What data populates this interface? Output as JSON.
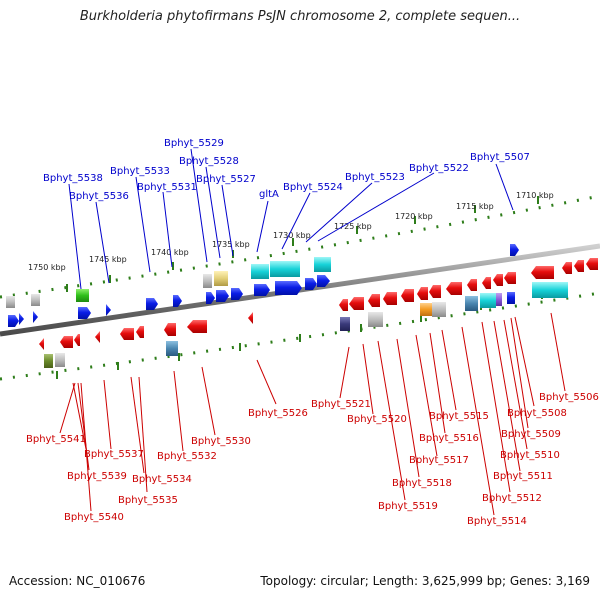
{
  "title": "Burkholderia phytofirmans PsJN chromosome 2, complete sequen...",
  "accession_line": "Accession: NC_010676",
  "summary_line": "Topology: circular; Length: 3,625,999 bp; Genes: 3,169",
  "colors": {
    "top_label": "#0000cc",
    "bottom_label": "#cc0000",
    "tick": "#2e7d1a",
    "backbone": "#8c8c8c",
    "forward_gene": "#0a1de6",
    "reverse_gene": "#e60d0d"
  },
  "scale": [
    "1750 kbp",
    "1745 kbp",
    "1740 kbp",
    "1735 kbp",
    "1730 kbp",
    "1725 kbp",
    "1720 kbp",
    "1715 kbp",
    "1710 kbp"
  ],
  "top_labels": [
    "Bphyt_5538",
    "Bphyt_5536",
    "Bphyt_5533",
    "Bphyt_5531",
    "Bphyt_5529",
    "Bphyt_5528",
    "Bphyt_5527",
    "gltA",
    "Bphyt_5524",
    "Bphyt_5523",
    "Bphyt_5522",
    "Bphyt_5507"
  ],
  "bottom_labels": [
    "Bphyt_5541",
    "Bphyt_5537",
    "Bphyt_5539",
    "Bphyt_5540",
    "Bphyt_5534",
    "Bphyt_5535",
    "Bphyt_5532",
    "Bphyt_5530",
    "Bphyt_5526",
    "Bphyt_5521",
    "Bphyt_5520",
    "Bphyt_5519",
    "Bphyt_5518",
    "Bphyt_5517",
    "Bphyt_5516",
    "Bphyt_5515",
    "Bphyt_5514",
    "Bphyt_5512",
    "Bphyt_5511",
    "Bphyt_5510",
    "Bphyt_5509",
    "Bphyt_5508",
    "Bphyt_5506"
  ]
}
